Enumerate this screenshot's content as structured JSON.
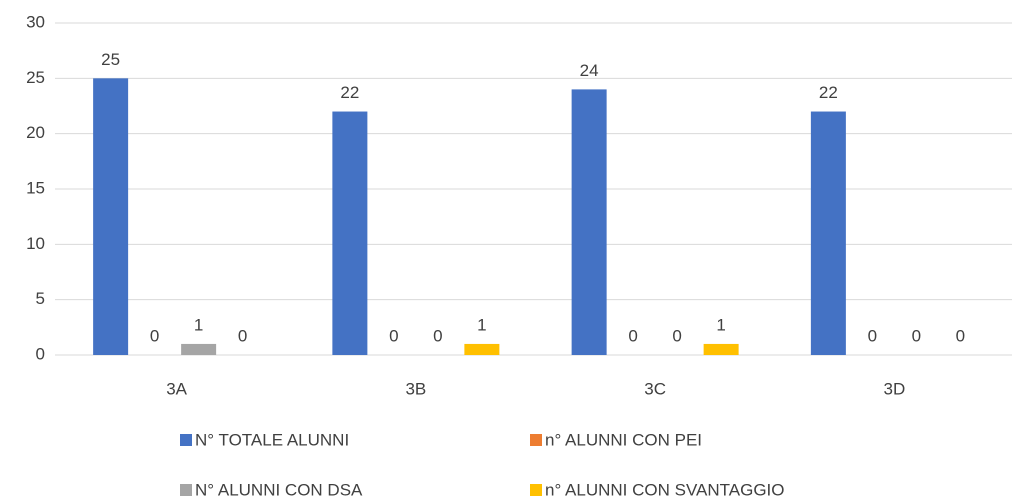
{
  "chart_data": {
    "type": "bar",
    "categories": [
      "3A",
      "3B",
      "3C",
      "3D"
    ],
    "series": [
      {
        "name": "N° TOTALE ALUNNI",
        "color": "#4472c4",
        "values": [
          25,
          22,
          24,
          22
        ]
      },
      {
        "name": "n° ALUNNI CON PEI",
        "color": "#ed7d31",
        "values": [
          0,
          0,
          0,
          0
        ]
      },
      {
        "name": "N° ALUNNI CON DSA",
        "color": "#a5a5a5",
        "values": [
          1,
          0,
          0,
          0
        ]
      },
      {
        "name": "n° ALUNNI CON SVANTAGGIO",
        "color": "#ffc000",
        "values": [
          0,
          1,
          1,
          0
        ]
      }
    ],
    "ylim": [
      0,
      30
    ],
    "yticks": [
      0,
      5,
      10,
      15,
      20,
      25,
      30
    ],
    "grid": true,
    "legend": "bottom"
  }
}
